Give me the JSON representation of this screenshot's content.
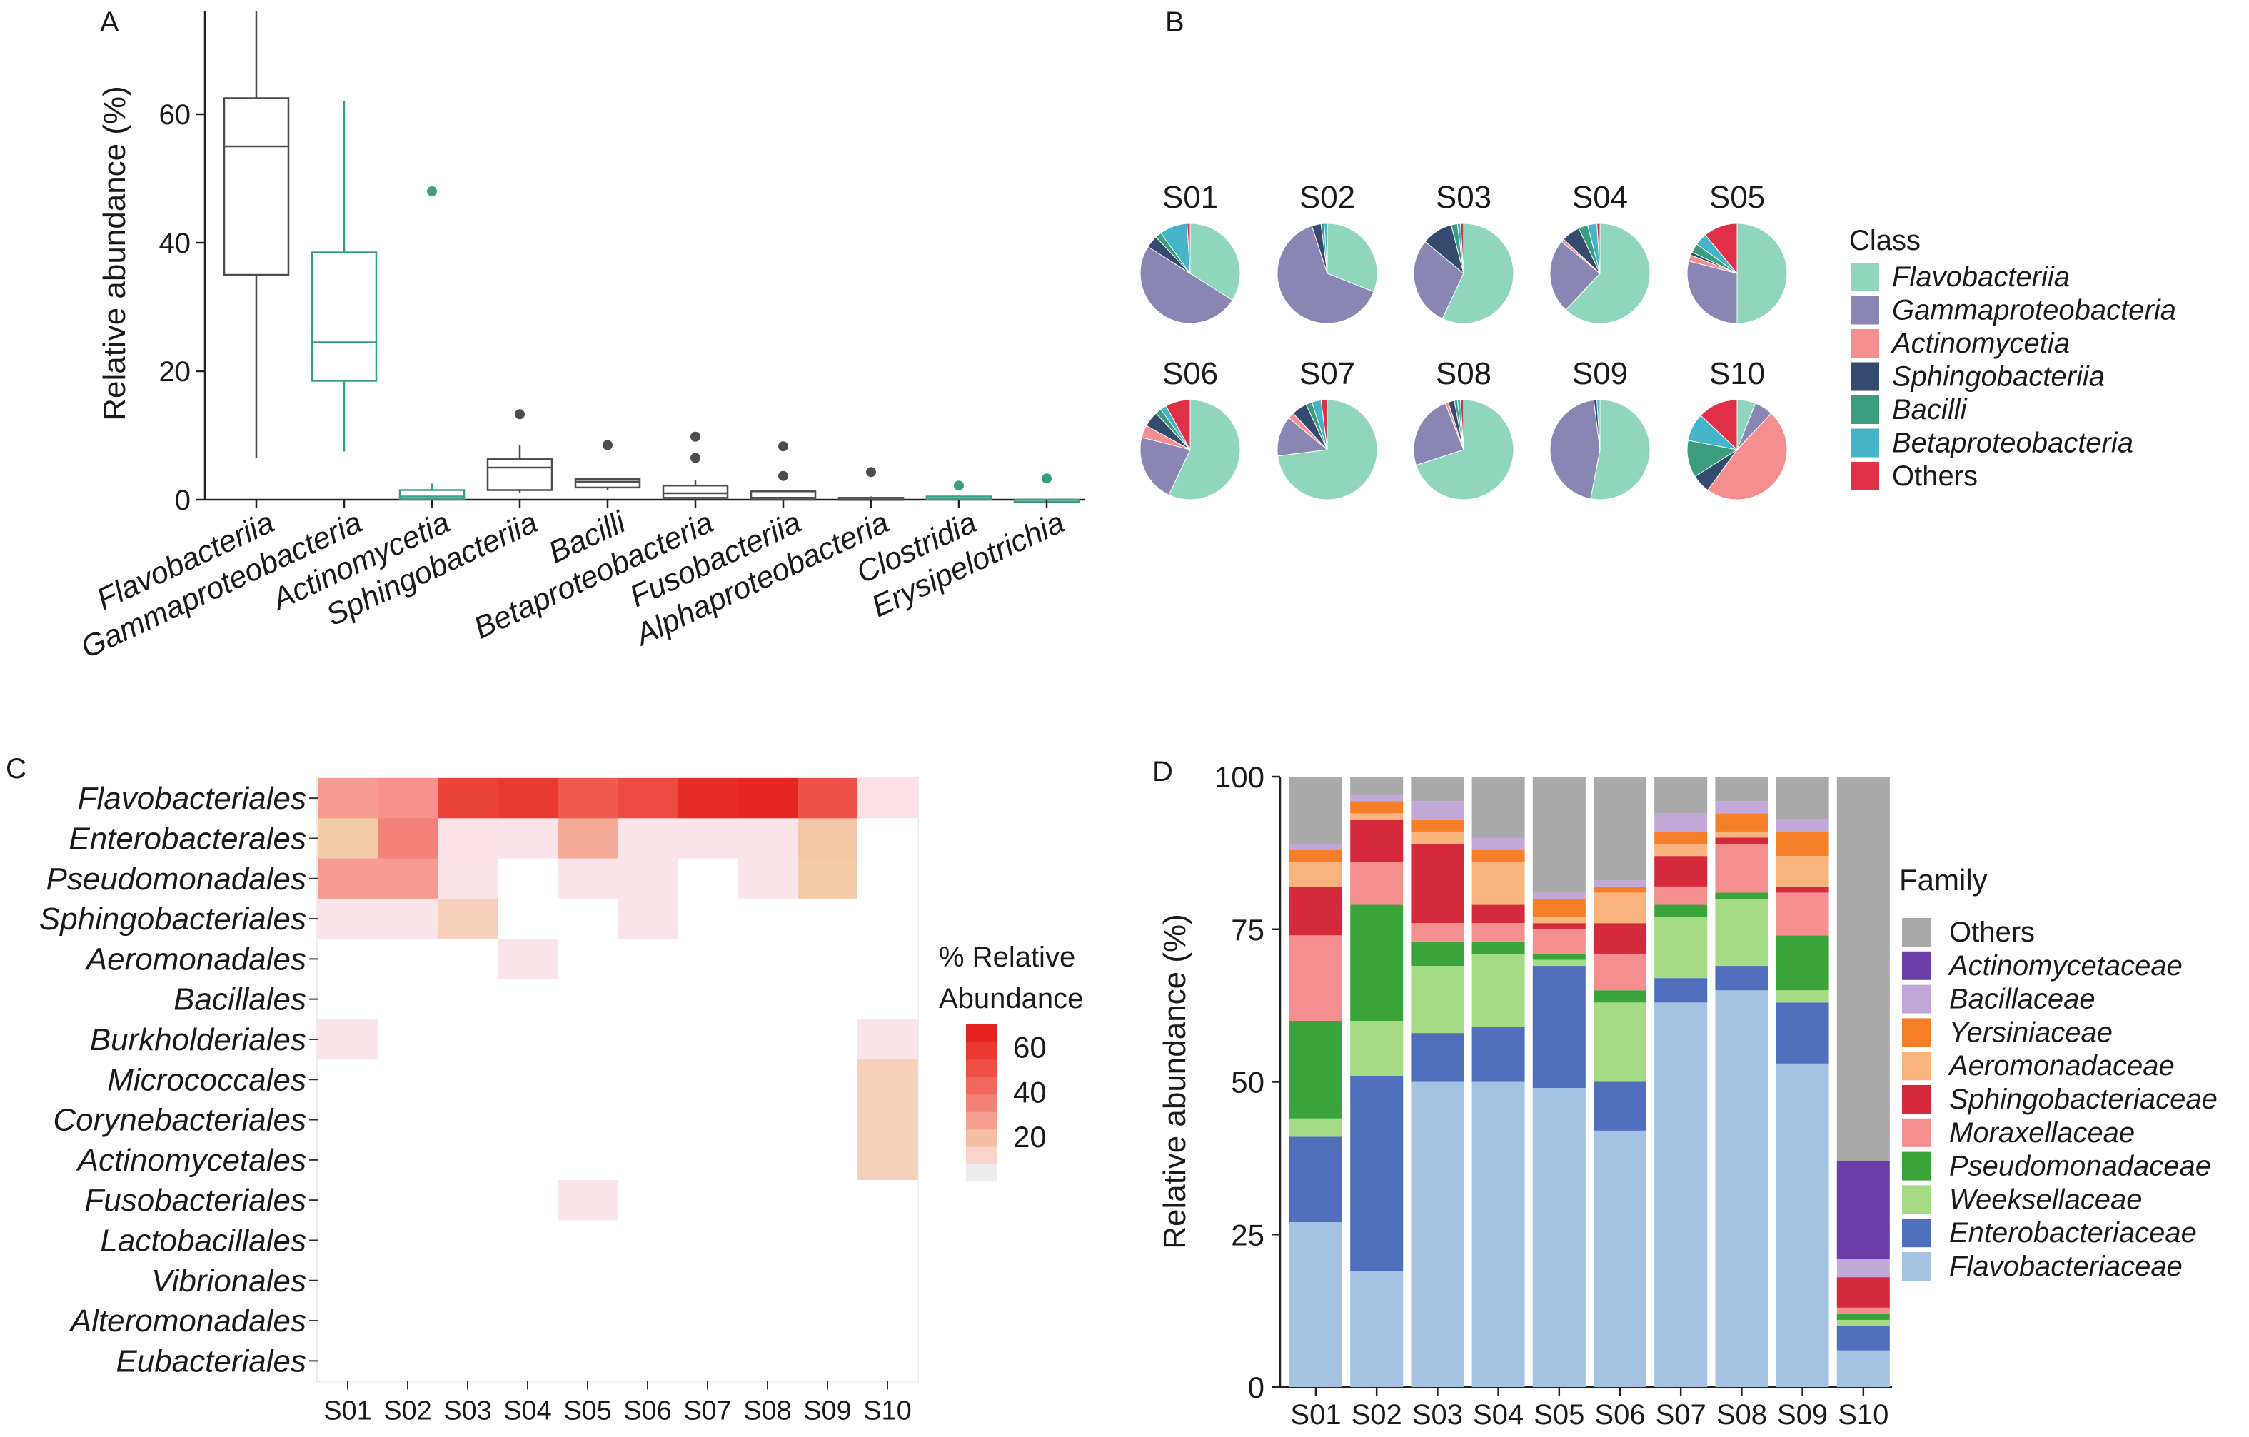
{
  "chart_data": [
    {
      "panel": "A",
      "type": "box",
      "ylabel": "Relative abundance (%)",
      "ylim": [
        0,
        76
      ],
      "yticks": [
        0,
        20,
        40,
        60
      ],
      "categories": [
        "Flavobacteriia",
        "Gammaproteobacteria",
        "Actinomycetia",
        "Sphingobacteriia",
        "Bacilli",
        "Betaproteobacteria",
        "Fusobacteriia",
        "Alphaproteobacteria",
        "Clostridia",
        "Erysipelotrichia"
      ],
      "boxes": [
        {
          "min": 6.5,
          "q1": 35,
          "median": 55,
          "q3": 62.5,
          "max": 76,
          "outliers": [],
          "color": "#4d4d4d"
        },
        {
          "min": 7.5,
          "q1": 18.5,
          "median": 24.5,
          "q3": 38.5,
          "max": 62,
          "outliers": [],
          "color": "#3a9e86"
        },
        {
          "min": 0,
          "q1": 0.1,
          "median": 0.5,
          "q3": 1.5,
          "max": 2.5,
          "outliers": [
            48
          ],
          "color": "#3a9e86"
        },
        {
          "min": 1,
          "q1": 1.5,
          "median": 5,
          "q3": 6.3,
          "max": 8.5,
          "outliers": [
            13.3
          ],
          "color": "#4d4d4d"
        },
        {
          "min": 1.5,
          "q1": 1.9,
          "median": 2.8,
          "q3": 3.2,
          "max": 3.4,
          "outliers": [
            8.5
          ],
          "color": "#4d4d4d"
        },
        {
          "min": 0,
          "q1": 0.3,
          "median": 1,
          "q3": 2.2,
          "max": 3,
          "outliers": [
            6.5,
            9.8
          ],
          "color": "#4d4d4d"
        },
        {
          "min": 0,
          "q1": 0,
          "median": 0.3,
          "q3": 1.3,
          "max": 1.5,
          "outliers": [
            3.7,
            8.3
          ],
          "color": "#4d4d4d"
        },
        {
          "min": 0,
          "q1": 0,
          "median": 0,
          "q3": 0.3,
          "max": 0.5,
          "outliers": [
            4.3
          ],
          "color": "#4d4d4d"
        },
        {
          "min": 0,
          "q1": 0,
          "median": 0.1,
          "q3": 0.5,
          "max": 0.7,
          "outliers": [
            2.2
          ],
          "color": "#3a9e86"
        },
        {
          "min": 0,
          "q1": 0,
          "median": 0,
          "q3": 0,
          "max": 0,
          "outliers": [
            3.3
          ],
          "color": "#3a9e86"
        }
      ]
    },
    {
      "panel": "B",
      "type": "pie",
      "legend_title": "Class",
      "legend": [
        "Flavobacteriia",
        "Gammaproteobacteria",
        "Actinomycetia",
        "Sphingobacteriia",
        "Bacilli",
        "Betaproteobacteria",
        "Others"
      ],
      "legend_italic": [
        true,
        true,
        true,
        true,
        true,
        true,
        false
      ],
      "colors": [
        "#8fd6bd",
        "#8a86b4",
        "#f58f8f",
        "#344a6e",
        "#3a9e7e",
        "#46b4c8",
        "#e03048"
      ],
      "samples": [
        {
          "name": "S01",
          "values": [
            34,
            50,
            0,
            4,
            2,
            9,
            1
          ]
        },
        {
          "name": "S02",
          "values": [
            31,
            64,
            0,
            3,
            1,
            1,
            0
          ]
        },
        {
          "name": "S03",
          "values": [
            57,
            29,
            0,
            10,
            2,
            1,
            1
          ]
        },
        {
          "name": "S04",
          "values": [
            62,
            24,
            1,
            6,
            3,
            3,
            1
          ]
        },
        {
          "name": "S05",
          "values": [
            50,
            29,
            2,
            1,
            3,
            4,
            11
          ]
        },
        {
          "name": "S06",
          "values": [
            57,
            22,
            4,
            5,
            2,
            2,
            8
          ]
        },
        {
          "name": "S07",
          "values": [
            73,
            13,
            2,
            5,
            2,
            3,
            2
          ]
        },
        {
          "name": "S08",
          "values": [
            70,
            24,
            1,
            2,
            1,
            1,
            1
          ]
        },
        {
          "name": "S09",
          "values": [
            53,
            45,
            0,
            1,
            0,
            1,
            0
          ]
        },
        {
          "name": "S10",
          "values": [
            6,
            6,
            48,
            6,
            12,
            9,
            13
          ]
        }
      ]
    },
    {
      "panel": "C",
      "type": "heatmap",
      "legend_title": [
        "% Relative",
        "Abundance"
      ],
      "legend_ticks": [
        20,
        40,
        60
      ],
      "color_range": [
        0,
        70
      ],
      "columns": [
        "S01",
        "S02",
        "S03",
        "S04",
        "S05",
        "S06",
        "S07",
        "S08",
        "S09",
        "S10"
      ],
      "rows": [
        "Flavobacteriales",
        "Enterobacterales",
        "Pseudomonadales",
        "Sphingobacteriales",
        "Aeromonadales",
        "Bacillales",
        "Burkholderiales",
        "Micrococcales",
        "Corynebacteriales",
        "Actinomycetales",
        "Fusobacteriales",
        "Lactobacillales",
        "Vibrionales",
        "Alteromonadales",
        "Eubacteriales"
      ],
      "values": [
        [
          28,
          30,
          55,
          58,
          47,
          52,
          63,
          65,
          50,
          6
        ],
        [
          17,
          35,
          6,
          5,
          25,
          5,
          5,
          5,
          18,
          0
        ],
        [
          28,
          28,
          5,
          0,
          5,
          5,
          0,
          5,
          17,
          0
        ],
        [
          5,
          5,
          14,
          0,
          0,
          5,
          0,
          0,
          0,
          0
        ],
        [
          0,
          0,
          0,
          5,
          0,
          0,
          0,
          0,
          0,
          0
        ],
        [
          0,
          0,
          0,
          0,
          0,
          0,
          0,
          0,
          0,
          0
        ],
        [
          5,
          0,
          0,
          0,
          0,
          0,
          0,
          0,
          0,
          5
        ],
        [
          0,
          0,
          0,
          0,
          0,
          0,
          0,
          0,
          0,
          14
        ],
        [
          0,
          0,
          0,
          0,
          0,
          0,
          0,
          0,
          0,
          14
        ],
        [
          0,
          0,
          0,
          0,
          0,
          0,
          0,
          0,
          0,
          14
        ],
        [
          0,
          0,
          0,
          0,
          5,
          0,
          0,
          0,
          0,
          0
        ],
        [
          0,
          0,
          0,
          0,
          0,
          0,
          0,
          0,
          0,
          0
        ],
        [
          0,
          0,
          0,
          0,
          0,
          0,
          0,
          0,
          0,
          0
        ],
        [
          0,
          0,
          0,
          0,
          0,
          0,
          0,
          0,
          0,
          0
        ],
        [
          0,
          0,
          0,
          0,
          0,
          0,
          0,
          0,
          0,
          0
        ]
      ]
    },
    {
      "panel": "D",
      "type": "stacked_bar",
      "ylabel": "Relative abundance (%)",
      "ylim": [
        0,
        100
      ],
      "yticks": [
        0,
        25,
        50,
        75,
        100
      ],
      "legend_title": "Family",
      "categories": [
        "S01",
        "S02",
        "S03",
        "S04",
        "S05",
        "S06",
        "S07",
        "S08",
        "S09",
        "S10"
      ],
      "series": [
        {
          "name": "Flavobacteriaceae",
          "color": "#a4c3e2",
          "values": [
            27,
            19,
            50,
            50,
            49,
            42,
            63,
            65,
            53,
            6
          ]
        },
        {
          "name": "Enterobacteriaceae",
          "color": "#4f6fbc",
          "values": [
            14,
            32,
            8,
            9,
            20,
            8,
            4,
            4,
            10,
            4
          ]
        },
        {
          "name": "Weeksellaceae",
          "color": "#a4db84",
          "values": [
            3,
            9,
            11,
            12,
            1,
            13,
            10,
            11,
            2,
            1
          ]
        },
        {
          "name": "Pseudomonadaceae",
          "color": "#3aa43a",
          "values": [
            16,
            19,
            4,
            2,
            1,
            2,
            2,
            1,
            9,
            1
          ]
        },
        {
          "name": "Moraxellaceae",
          "color": "#f58f8f",
          "values": [
            14,
            7,
            3,
            3,
            4,
            6,
            3,
            8,
            7,
            1
          ]
        },
        {
          "name": "Sphingobacteriaceae",
          "color": "#d42a3c",
          "values": [
            8,
            7,
            13,
            3,
            1,
            5,
            5,
            1,
            1,
            5
          ]
        },
        {
          "name": "Aeromonadaceae",
          "color": "#f9b47e",
          "values": [
            4,
            1,
            2,
            7,
            1,
            5,
            2,
            1,
            5,
            0
          ]
        },
        {
          "name": "Yersiniaceae",
          "color": "#f57e28",
          "values": [
            2,
            2,
            2,
            2,
            3,
            1,
            2,
            3,
            4,
            0
          ]
        },
        {
          "name": "Bacillaceae",
          "color": "#c2a8d8",
          "values": [
            1,
            1,
            3,
            2,
            1,
            1,
            3,
            2,
            2,
            3
          ]
        },
        {
          "name": "Actinomycetaceae",
          "color": "#6a3da8",
          "values": [
            0,
            0,
            0,
            0,
            0,
            0,
            0,
            0,
            0,
            16
          ]
        },
        {
          "name": "Others",
          "color": "#a9a9a9",
          "values": [
            11,
            3,
            4,
            10,
            19,
            17,
            6,
            4,
            7,
            63
          ]
        }
      ],
      "legend_order": [
        "Others",
        "Actinomycetaceae",
        "Bacillaceae",
        "Yersiniaceae",
        "Aeromonadaceae",
        "Sphingobacteriaceae",
        "Moraxellaceae",
        "Pseudomonadaceae",
        "Weeksellaceae",
        "Enterobacteriaceae",
        "Flavobacteriaceae"
      ]
    }
  ],
  "panel_labels": [
    "A",
    "B",
    "C",
    "D"
  ]
}
